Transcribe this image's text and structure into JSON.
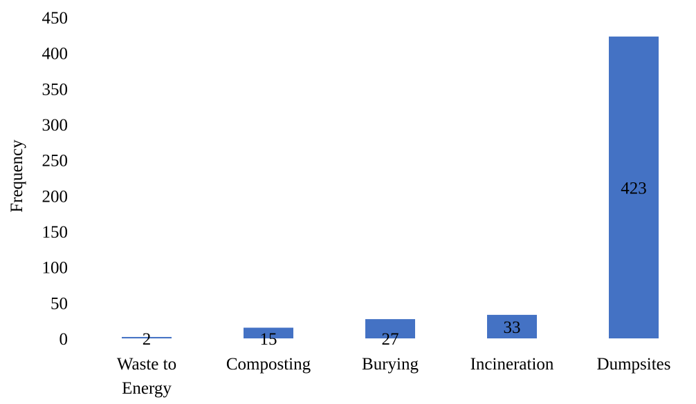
{
  "chart_data": {
    "type": "bar",
    "title": "",
    "xlabel": "",
    "ylabel": "Frequency",
    "categories": [
      [
        "Waste to",
        "Energy"
      ],
      [
        "Composting"
      ],
      [
        "Burying"
      ],
      [
        "Incineration"
      ],
      [
        "Dumpsites"
      ]
    ],
    "values": [
      2,
      15,
      27,
      33,
      423
    ],
    "ylim": [
      0,
      450
    ],
    "yticks": [
      0,
      50,
      100,
      150,
      200,
      250,
      300,
      350,
      400,
      450
    ],
    "grid": false,
    "legend": "none",
    "bar_color": "#4472C4",
    "data_labels": true
  }
}
